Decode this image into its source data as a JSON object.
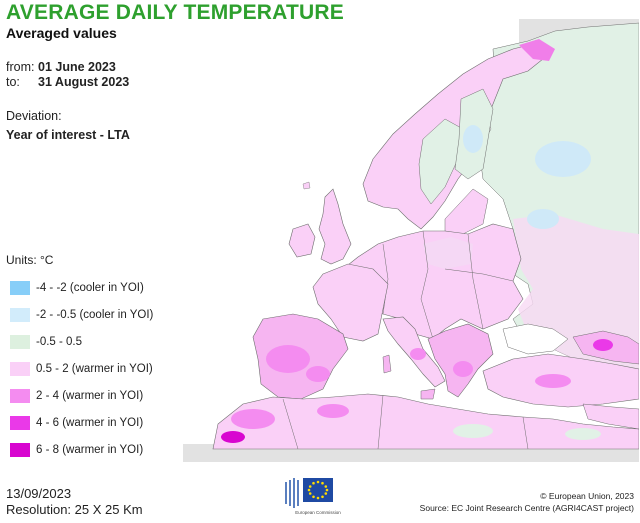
{
  "header": {
    "title": "AVERAGE DAILY TEMPERATURE",
    "subtitle": "Averaged values"
  },
  "period": {
    "from_label": "from:",
    "from_value": "01 June 2023",
    "to_label": "to:",
    "to_value": "31 August 2023"
  },
  "deviation": {
    "label": "Deviation:",
    "value": "Year of interest - LTA"
  },
  "legend": {
    "units": "Units: °C",
    "items": [
      {
        "label": "-4 - -2 (cooler in YOI)",
        "color": "#87cef8"
      },
      {
        "label": "-2 - -0.5 (cooler in YOI)",
        "color": "#d2ecfb"
      },
      {
        "label": "-0.5 - 0.5",
        "color": "#ddf0df"
      },
      {
        "label": "0.5 - 2 (warmer in YOI)",
        "color": "#fad0f7"
      },
      {
        "label": "2 - 4 (warmer in YOI)",
        "color": "#f48cf0"
      },
      {
        "label": "4 - 6 (warmer in YOI)",
        "color": "#ea39e8"
      },
      {
        "label": "6 - 8 (warmer in YOI)",
        "color": "#d806d0"
      }
    ]
  },
  "footer": {
    "date": "13/09/2023",
    "resolution": "Resolution: 25 X 25 Km",
    "logo_text": "European Commission",
    "copyright": "© European Union, 2023",
    "source": "Source: EC Joint Research Centre (AGRI4CAST project)"
  },
  "colors": {
    "title": "#2ea02e",
    "sea": "#ffffff",
    "no_data": "#e2e2e2",
    "border": "#6e6e6e",
    "eu_blue": "#1f4aa3",
    "eu_star": "#ffdd00"
  }
}
